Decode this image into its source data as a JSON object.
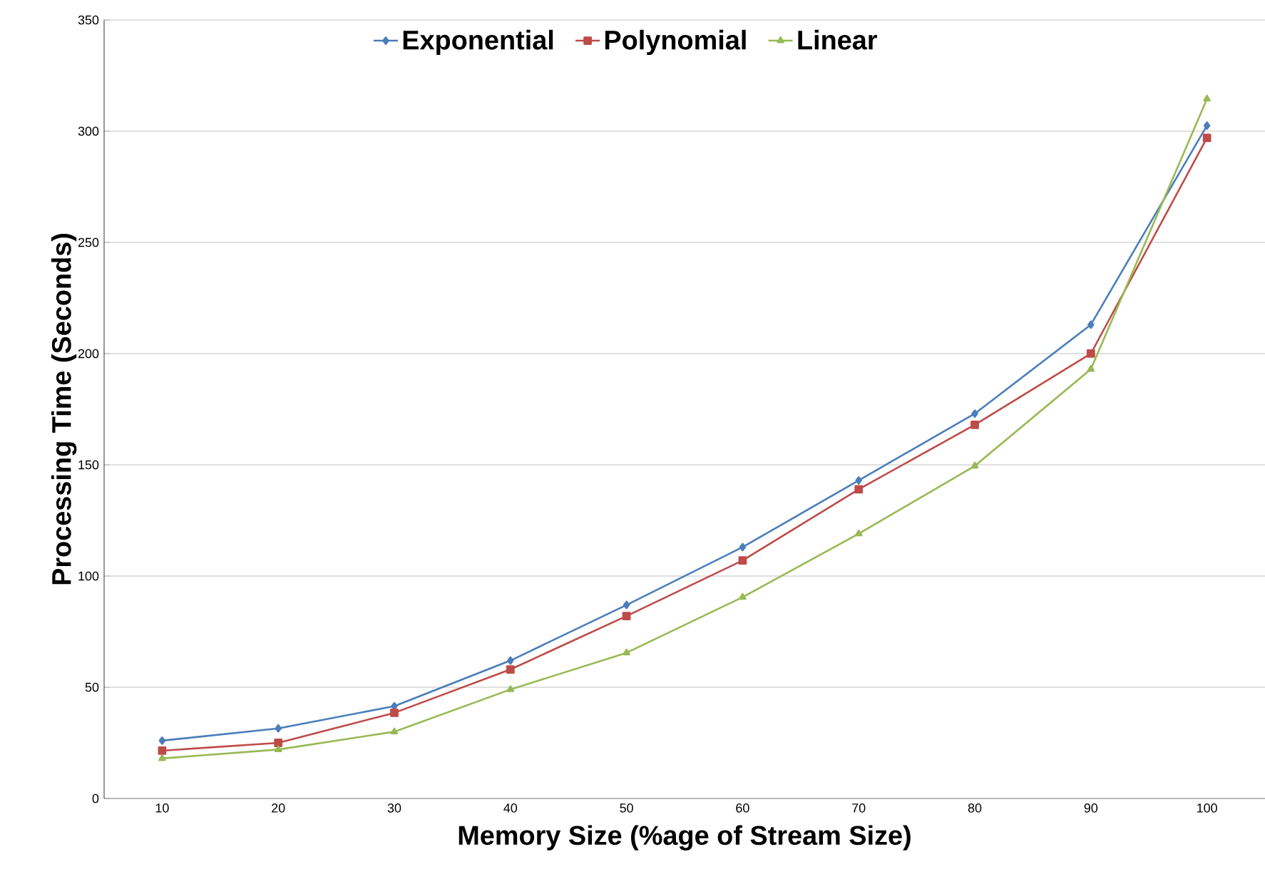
{
  "chart_data": {
    "type": "line",
    "xlabel": "Memory Size (%age of Stream Size)",
    "ylabel": "Processing Time (Seconds)",
    "categories": [
      "10",
      "20",
      "30",
      "40",
      "50",
      "60",
      "70",
      "80",
      "90",
      "100"
    ],
    "series": [
      {
        "name": "Exponential",
        "color": "#4a7ebb",
        "marker": "diamond",
        "values": [
          26,
          31.5,
          41.5,
          62,
          87,
          113,
          143,
          173,
          213,
          302.5
        ]
      },
      {
        "name": "Polynomial",
        "color": "#be4b48",
        "marker": "square",
        "values": [
          21.5,
          25,
          38.5,
          58,
          82,
          107,
          139,
          168,
          200,
          297
        ]
      },
      {
        "name": "Linear",
        "color": "#98b954",
        "marker": "triangle",
        "values": [
          18,
          22,
          30,
          49,
          65.5,
          90.5,
          119,
          149.5,
          193,
          314.5
        ]
      }
    ],
    "ylim": [
      0,
      350
    ],
    "yticks": [
      0,
      50,
      100,
      150,
      200,
      250,
      300,
      350
    ],
    "grid": "y",
    "legend": "top",
    "line_style": "solid"
  }
}
